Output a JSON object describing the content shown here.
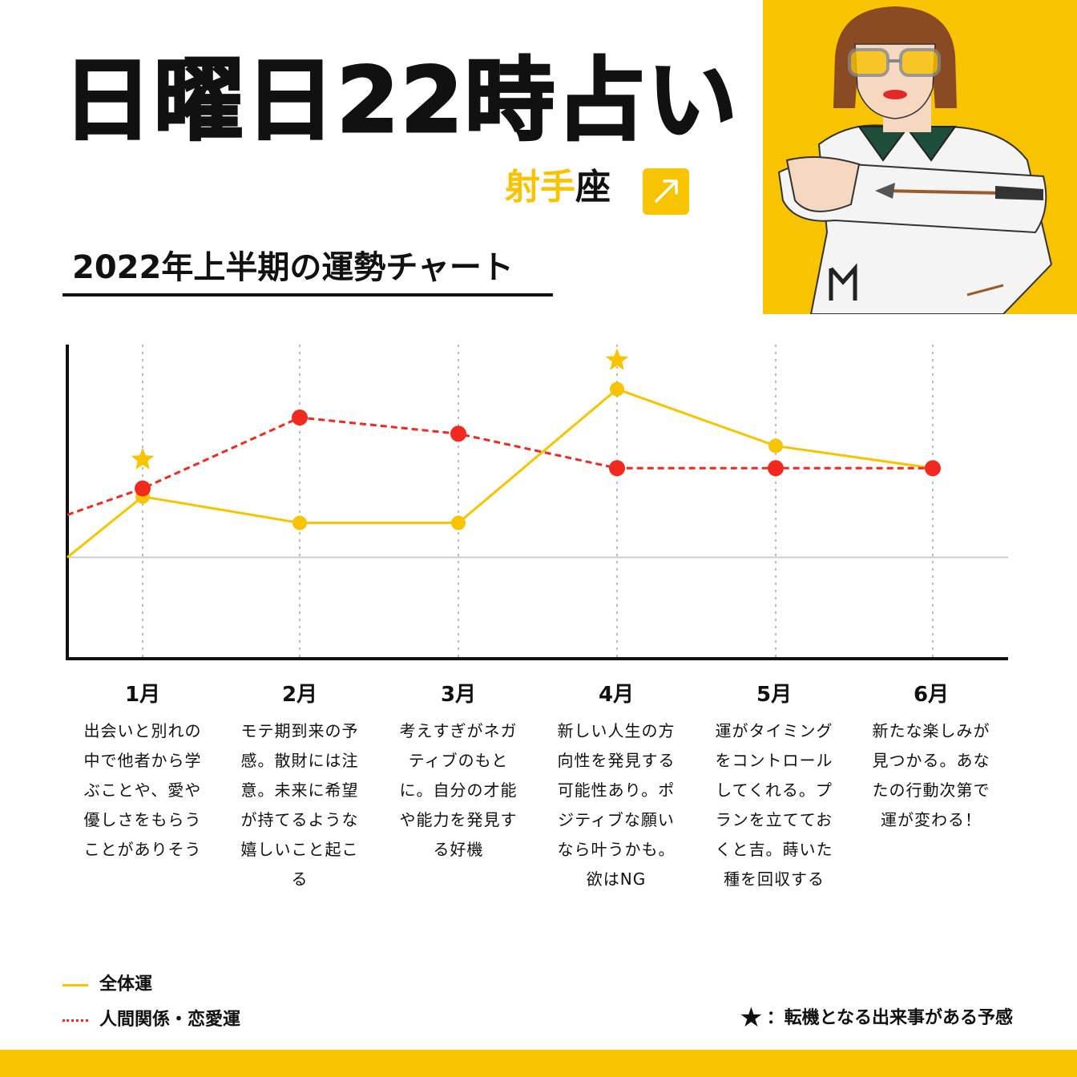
{
  "header": {
    "title": "日曜日22時占い",
    "sign_highlight": "射手",
    "sign_suffix": "座",
    "subtitle": "2022年上半期の運勢チャート"
  },
  "icons": {
    "sign_icon": "sagittarius-arrow-icon",
    "portrait": "sagittarius-character-illustration",
    "turning_point": "star-icon"
  },
  "colors": {
    "accent_yellow": "#F8C300",
    "love_red": "#F02A1E",
    "ink": "#111111"
  },
  "chart_data": {
    "type": "line",
    "categories": [
      "1月",
      "2月",
      "3月",
      "4月",
      "5月",
      "6月"
    ],
    "series": [
      {
        "name": "全体運",
        "style": "solid",
        "color": "#F8C300",
        "start": 0,
        "values": [
          3,
          1.7,
          1.7,
          8.3,
          5.5,
          4.4
        ]
      },
      {
        "name": "人間関係・恋愛運",
        "style": "dashed",
        "color": "#F02A1E",
        "start": 2.1,
        "values": [
          3.4,
          6.9,
          6.1,
          4.4,
          4.4,
          4.4
        ]
      }
    ],
    "turning_points": [
      "1月",
      "4月"
    ],
    "ylim": [
      -5,
      10.5
    ],
    "baseline": 0,
    "grid": "vertical-dotted"
  },
  "months": [
    {
      "label": "1月",
      "desc": "出会いと別れの\n中で他者から学\nぶことや、愛や\n優しさをもらう\nことがありそう"
    },
    {
      "label": "2月",
      "desc": "モテ期到来の予\n感。散財には注\n意。未来に希望\nが持てるような\n嬉しいこと起こ\nる"
    },
    {
      "label": "3月",
      "desc": "考えすぎがネガ\nティブのもと\nに。自分の才能\nや能力を発見す\nる好機"
    },
    {
      "label": "4月",
      "desc": "新しい人生の方\n向性を発見する\n可能性あり。ポ\nジティブな願い\nなら叶うかも。\n欲はNG"
    },
    {
      "label": "5月",
      "desc": "運がタイミング\nをコントロール\nしてくれる。プ\nランを立ててお\nくと吉。蒔いた\n種を回収する"
    },
    {
      "label": "6月",
      "desc": "新たな楽しみが\n見つかる。あな\nたの行動次第で\n運が変わる！"
    }
  ],
  "legend": {
    "overall": "全体運",
    "love": "人間関係・恋愛運",
    "note": "：転機となる出来事がある予感",
    "star": "★"
  }
}
